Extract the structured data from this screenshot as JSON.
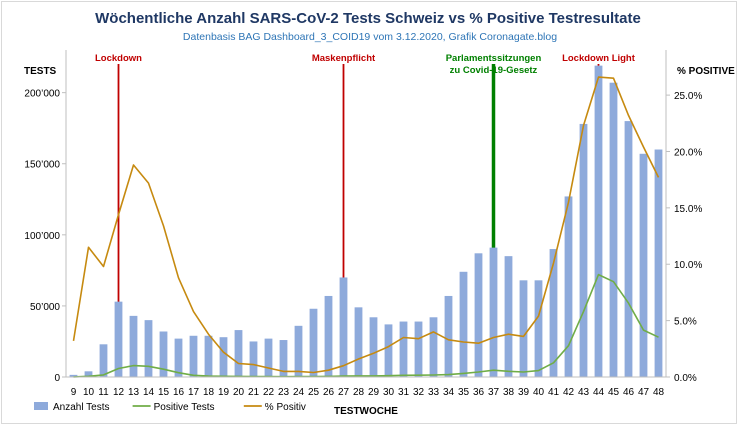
{
  "chart_data": {
    "type": "bar",
    "title": "Wöchentliche Anzahl SARS-CoV-2 Tests Schweiz vs % Positive Testresultate",
    "subtitle": "Datenbasis BAG Dashboard_3_COID19 vom 3.12.2020, Grafik Coronagate.blog",
    "xlabel": "TESTWOCHE",
    "ylabel_left": "TESTS",
    "ylabel_right": "% POSITIVE",
    "categories": [
      "9",
      "10",
      "11",
      "12",
      "13",
      "14",
      "15",
      "16",
      "17",
      "18",
      "19",
      "20",
      "21",
      "22",
      "23",
      "24",
      "25",
      "26",
      "27",
      "28",
      "29",
      "30",
      "31",
      "32",
      "33",
      "34",
      "35",
      "36",
      "37",
      "38",
      "39",
      "40",
      "41",
      "42",
      "43",
      "44",
      "45",
      "46",
      "47",
      "48"
    ],
    "ylim_left": [
      0,
      230000
    ],
    "ylim_right": [
      0,
      0.29
    ],
    "yticks_left": [
      "0",
      "50’000",
      "100’000",
      "150’000",
      "200’000"
    ],
    "yticks_right": [
      "0.0%",
      "5.0%",
      "10.0%",
      "15.0%",
      "20.0%",
      "25.0%"
    ],
    "grid": false,
    "legend_position": "bottom-left",
    "series": [
      {
        "name": "Anzahl Tests",
        "kind": "bar",
        "axis": "left",
        "color": "#8eaadb",
        "values": [
          1500,
          4000,
          23000,
          53000,
          43000,
          40000,
          32000,
          27000,
          29000,
          29000,
          28000,
          33000,
          25000,
          27000,
          26000,
          36000,
          48000,
          57000,
          70000,
          49000,
          42000,
          37000,
          39000,
          39000,
          42000,
          57000,
          74000,
          87000,
          91000,
          85000,
          68000,
          68000,
          90000,
          127000,
          178000,
          219000,
          207000,
          180000,
          157000,
          160000
        ]
      },
      {
        "name": "Positive Tests",
        "kind": "line",
        "axis": "left",
        "color": "#70ad47",
        "values": [
          100,
          500,
          1500,
          6000,
          8000,
          7500,
          5500,
          3000,
          1200,
          700,
          500,
          400,
          300,
          300,
          200,
          300,
          350,
          400,
          700,
          800,
          750,
          900,
          1200,
          1300,
          1400,
          1700,
          2500,
          3500,
          4800,
          4000,
          3500,
          4500,
          10000,
          22000,
          46000,
          72000,
          67000,
          52000,
          33000,
          28000
        ]
      },
      {
        "name": "% Positiv",
        "kind": "line",
        "axis": "right",
        "color": "#c68a10",
        "values": [
          0.032,
          0.115,
          0.098,
          0.144,
          0.188,
          0.172,
          0.134,
          0.088,
          0.058,
          0.038,
          0.022,
          0.012,
          0.011,
          0.008,
          0.005,
          0.005,
          0.004,
          0.006,
          0.01,
          0.016,
          0.021,
          0.027,
          0.035,
          0.034,
          0.04,
          0.033,
          0.031,
          0.03,
          0.035,
          0.038,
          0.036,
          0.054,
          0.101,
          0.155,
          0.223,
          0.266,
          0.265,
          0.232,
          0.204,
          0.177
        ]
      }
    ],
    "annotations": [
      {
        "text": "Lockdown",
        "week": "12",
        "color": "#c00000"
      },
      {
        "text": "Maskenpflicht",
        "week": "27",
        "color": "#c00000"
      },
      {
        "text": "Parlamentssitzungen zu Covid-19-Gesetz",
        "lines": [
          "Parlamentssitzungen",
          "zu Covid-19-Gesetz"
        ],
        "week": "37",
        "color": "#008000"
      },
      {
        "text": "Lockdown Light",
        "week": "44",
        "color": "#c00000"
      }
    ]
  }
}
